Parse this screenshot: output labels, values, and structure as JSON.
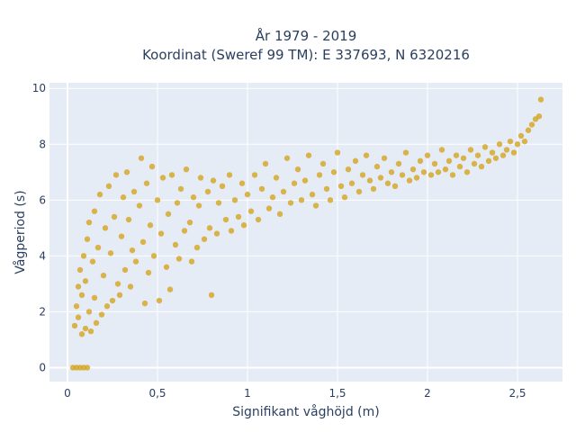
{
  "chart_data": {
    "type": "scatter",
    "title_line1": "År 1979 - 2019",
    "title_line2": "Koordinat (Sweref 99 TM): E 337693, N 6320216",
    "xlabel": "Signifikant våghöjd (m)",
    "ylabel": "Vågperiod (s)",
    "xlim": [
      -0.1,
      2.75
    ],
    "ylim": [
      -0.5,
      10.2
    ],
    "x_ticks": [
      {
        "value": 0,
        "label": "0"
      },
      {
        "value": 0.5,
        "label": "0,5"
      },
      {
        "value": 1,
        "label": "1"
      },
      {
        "value": 1.5,
        "label": "1,5"
      },
      {
        "value": 2,
        "label": "2"
      },
      {
        "value": 2.5,
        "label": "2,5"
      }
    ],
    "y_ticks": [
      {
        "value": 0,
        "label": "0"
      },
      {
        "value": 2,
        "label": "2"
      },
      {
        "value": 4,
        "label": "4"
      },
      {
        "value": 6,
        "label": "6"
      },
      {
        "value": 8,
        "label": "8"
      },
      {
        "value": 10,
        "label": "10"
      }
    ],
    "grid": true,
    "marker_color": "#d4a521",
    "plot_bg": "#e5ecf6",
    "series": [
      {
        "points": [
          [
            0.03,
            0
          ],
          [
            0.05,
            0
          ],
          [
            0.07,
            0
          ],
          [
            0.09,
            0
          ],
          [
            0.11,
            0
          ],
          [
            0.04,
            1.5
          ],
          [
            0.05,
            2.2
          ],
          [
            0.06,
            2.9
          ],
          [
            0.06,
            1.8
          ],
          [
            0.07,
            3.5
          ],
          [
            0.08,
            1.2
          ],
          [
            0.08,
            2.6
          ],
          [
            0.09,
            4.0
          ],
          [
            0.1,
            1.4
          ],
          [
            0.1,
            3.1
          ],
          [
            0.11,
            4.6
          ],
          [
            0.12,
            2.0
          ],
          [
            0.12,
            5.2
          ],
          [
            0.13,
            1.3
          ],
          [
            0.14,
            3.8
          ],
          [
            0.15,
            2.5
          ],
          [
            0.15,
            5.6
          ],
          [
            0.16,
            1.6
          ],
          [
            0.17,
            4.3
          ],
          [
            0.18,
            6.2
          ],
          [
            0.19,
            1.9
          ],
          [
            0.2,
            3.3
          ],
          [
            0.21,
            5.0
          ],
          [
            0.22,
            2.2
          ],
          [
            0.23,
            6.5
          ],
          [
            0.24,
            4.1
          ],
          [
            0.25,
            2.4
          ],
          [
            0.26,
            5.4
          ],
          [
            0.27,
            6.9
          ],
          [
            0.28,
            3.0
          ],
          [
            0.29,
            2.6
          ],
          [
            0.3,
            4.7
          ],
          [
            0.31,
            6.1
          ],
          [
            0.32,
            3.5
          ],
          [
            0.33,
            7.0
          ],
          [
            0.34,
            5.3
          ],
          [
            0.35,
            2.9
          ],
          [
            0.36,
            4.2
          ],
          [
            0.37,
            6.3
          ],
          [
            0.38,
            3.8
          ],
          [
            0.4,
            5.8
          ],
          [
            0.41,
            7.5
          ],
          [
            0.42,
            4.5
          ],
          [
            0.43,
            2.3
          ],
          [
            0.44,
            6.6
          ],
          [
            0.45,
            3.4
          ],
          [
            0.46,
            5.1
          ],
          [
            0.47,
            7.2
          ],
          [
            0.48,
            4.0
          ],
          [
            0.5,
            6.0
          ],
          [
            0.51,
            2.4
          ],
          [
            0.52,
            4.8
          ],
          [
            0.53,
            6.8
          ],
          [
            0.55,
            3.6
          ],
          [
            0.56,
            5.5
          ],
          [
            0.57,
            2.8
          ],
          [
            0.58,
            6.9
          ],
          [
            0.6,
            4.4
          ],
          [
            0.61,
            5.9
          ],
          [
            0.62,
            3.9
          ],
          [
            0.63,
            6.4
          ],
          [
            0.65,
            4.9
          ],
          [
            0.66,
            7.1
          ],
          [
            0.68,
            5.2
          ],
          [
            0.69,
            3.8
          ],
          [
            0.7,
            6.1
          ],
          [
            0.72,
            4.3
          ],
          [
            0.73,
            5.8
          ],
          [
            0.74,
            6.8
          ],
          [
            0.76,
            4.6
          ],
          [
            0.78,
            6.3
          ],
          [
            0.79,
            5.0
          ],
          [
            0.8,
            2.6
          ],
          [
            0.81,
            6.7
          ],
          [
            0.83,
            4.8
          ],
          [
            0.84,
            5.9
          ],
          [
            0.86,
            6.5
          ],
          [
            0.88,
            5.3
          ],
          [
            0.9,
            6.9
          ],
          [
            0.91,
            4.9
          ],
          [
            0.93,
            6.0
          ],
          [
            0.95,
            5.4
          ],
          [
            0.97,
            6.6
          ],
          [
            0.98,
            5.1
          ],
          [
            1.0,
            6.2
          ],
          [
            1.02,
            5.6
          ],
          [
            1.04,
            6.9
          ],
          [
            1.06,
            5.3
          ],
          [
            1.08,
            6.4
          ],
          [
            1.1,
            7.3
          ],
          [
            1.12,
            5.7
          ],
          [
            1.14,
            6.1
          ],
          [
            1.16,
            6.8
          ],
          [
            1.18,
            5.5
          ],
          [
            1.2,
            6.3
          ],
          [
            1.22,
            7.5
          ],
          [
            1.24,
            5.9
          ],
          [
            1.26,
            6.6
          ],
          [
            1.28,
            7.1
          ],
          [
            1.3,
            6.0
          ],
          [
            1.32,
            6.7
          ],
          [
            1.34,
            7.6
          ],
          [
            1.36,
            6.2
          ],
          [
            1.38,
            5.8
          ],
          [
            1.4,
            6.9
          ],
          [
            1.42,
            7.3
          ],
          [
            1.44,
            6.4
          ],
          [
            1.46,
            6.0
          ],
          [
            1.48,
            7.0
          ],
          [
            1.5,
            7.7
          ],
          [
            1.52,
            6.5
          ],
          [
            1.54,
            6.1
          ],
          [
            1.56,
            7.1
          ],
          [
            1.58,
            6.6
          ],
          [
            1.6,
            7.4
          ],
          [
            1.62,
            6.3
          ],
          [
            1.64,
            6.9
          ],
          [
            1.66,
            7.6
          ],
          [
            1.68,
            6.7
          ],
          [
            1.7,
            6.4
          ],
          [
            1.72,
            7.2
          ],
          [
            1.74,
            6.8
          ],
          [
            1.76,
            7.5
          ],
          [
            1.78,
            6.6
          ],
          [
            1.8,
            7.0
          ],
          [
            1.82,
            6.5
          ],
          [
            1.84,
            7.3
          ],
          [
            1.86,
            6.9
          ],
          [
            1.88,
            7.7
          ],
          [
            1.9,
            6.7
          ],
          [
            1.92,
            7.1
          ],
          [
            1.94,
            6.8
          ],
          [
            1.96,
            7.4
          ],
          [
            1.98,
            7.0
          ],
          [
            2.0,
            7.6
          ],
          [
            2.02,
            6.9
          ],
          [
            2.04,
            7.3
          ],
          [
            2.06,
            7.0
          ],
          [
            2.08,
            7.8
          ],
          [
            2.1,
            7.1
          ],
          [
            2.12,
            7.4
          ],
          [
            2.14,
            6.9
          ],
          [
            2.16,
            7.6
          ],
          [
            2.18,
            7.2
          ],
          [
            2.2,
            7.5
          ],
          [
            2.22,
            7.0
          ],
          [
            2.24,
            7.8
          ],
          [
            2.26,
            7.3
          ],
          [
            2.28,
            7.6
          ],
          [
            2.3,
            7.2
          ],
          [
            2.32,
            7.9
          ],
          [
            2.34,
            7.4
          ],
          [
            2.36,
            7.7
          ],
          [
            2.38,
            7.5
          ],
          [
            2.4,
            8.0
          ],
          [
            2.42,
            7.6
          ],
          [
            2.44,
            7.8
          ],
          [
            2.46,
            8.1
          ],
          [
            2.48,
            7.7
          ],
          [
            2.5,
            8.0
          ],
          [
            2.52,
            8.3
          ],
          [
            2.54,
            8.1
          ],
          [
            2.56,
            8.5
          ],
          [
            2.58,
            8.7
          ],
          [
            2.6,
            8.9
          ],
          [
            2.62,
            9.0
          ],
          [
            2.63,
            9.6
          ]
        ]
      }
    ]
  }
}
